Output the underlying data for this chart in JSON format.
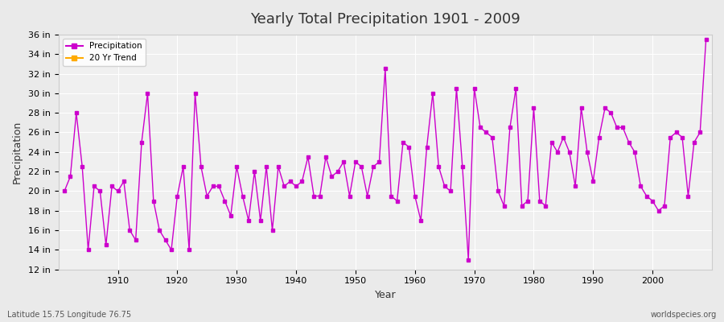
{
  "title": "Yearly Total Precipitation 1901 - 2009",
  "xlabel": "Year",
  "ylabel": "Precipitation",
  "subtitle": "Latitude 15.75 Longitude 76.75",
  "watermark": "worldspecies.org",
  "bg_color": "#eaeaea",
  "plot_bg_color": "#f0f0f0",
  "line_color": "#cc00cc",
  "trend_color": "#ffaa00",
  "ylim": [
    12,
    36
  ],
  "yticks": [
    12,
    14,
    16,
    18,
    20,
    22,
    24,
    26,
    28,
    30,
    32,
    34,
    36
  ],
  "years": [
    1901,
    1902,
    1903,
    1904,
    1905,
    1906,
    1907,
    1908,
    1909,
    1910,
    1911,
    1912,
    1913,
    1914,
    1915,
    1916,
    1917,
    1918,
    1919,
    1920,
    1921,
    1922,
    1923,
    1924,
    1925,
    1926,
    1927,
    1928,
    1929,
    1930,
    1931,
    1932,
    1933,
    1934,
    1935,
    1936,
    1937,
    1938,
    1939,
    1940,
    1941,
    1942,
    1943,
    1944,
    1945,
    1946,
    1947,
    1948,
    1949,
    1950,
    1951,
    1952,
    1953,
    1954,
    1955,
    1956,
    1957,
    1958,
    1959,
    1960,
    1961,
    1962,
    1963,
    1964,
    1965,
    1966,
    1967,
    1968,
    1969,
    1970,
    1971,
    1972,
    1973,
    1974,
    1975,
    1976,
    1977,
    1978,
    1979,
    1980,
    1981,
    1982,
    1983,
    1984,
    1985,
    1986,
    1987,
    1988,
    1989,
    1990,
    1991,
    1992,
    1993,
    1994,
    1995,
    1996,
    1997,
    1998,
    1999,
    2000,
    2001,
    2002,
    2003,
    2004,
    2005,
    2006,
    2007,
    2008,
    2009
  ],
  "precip": [
    20.0,
    21.5,
    28.0,
    22.5,
    14.0,
    20.5,
    20.0,
    14.5,
    20.5,
    20.0,
    21.0,
    16.0,
    15.0,
    25.0,
    30.0,
    19.0,
    16.0,
    15.0,
    14.0,
    19.5,
    22.5,
    14.0,
    30.0,
    22.5,
    19.5,
    20.5,
    20.5,
    19.0,
    17.5,
    22.5,
    19.5,
    17.0,
    22.0,
    17.0,
    22.5,
    16.0,
    22.5,
    20.5,
    21.0,
    20.5,
    21.0,
    23.5,
    19.5,
    19.5,
    23.5,
    21.5,
    22.0,
    23.0,
    19.5,
    23.0,
    22.5,
    19.5,
    22.5,
    23.0,
    32.5,
    19.5,
    19.0,
    25.0,
    24.5,
    19.5,
    17.0,
    24.5,
    30.0,
    22.5,
    20.5,
    20.0,
    30.5,
    22.5,
    13.0,
    30.5,
    26.5,
    26.0,
    25.5,
    20.0,
    18.5,
    26.5,
    30.5,
    18.5,
    19.0,
    28.5,
    19.0,
    18.5,
    25.0,
    24.0,
    25.5,
    24.0,
    20.5,
    28.5,
    24.0,
    21.0,
    25.5,
    28.5,
    28.0,
    26.5,
    26.5,
    25.0,
    24.0,
    20.5,
    19.5,
    19.0,
    18.0,
    18.5,
    25.5,
    26.0,
    25.5,
    19.5,
    25.0,
    26.0,
    35.5
  ]
}
